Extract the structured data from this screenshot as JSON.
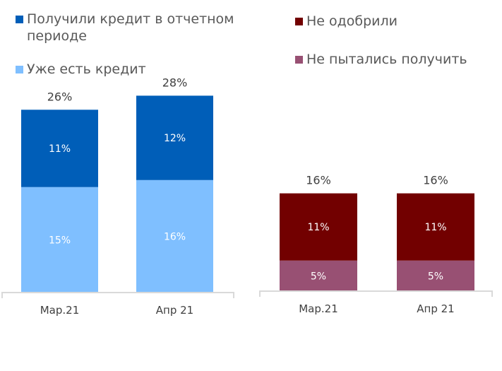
{
  "chart_data": [
    {
      "type": "bar",
      "stacked": true,
      "categories": [
        "Мар.21",
        "Апр 21"
      ],
      "series": [
        {
          "name": "Уже есть кредит",
          "values": [
            15,
            16
          ],
          "color": "#7fbfff"
        },
        {
          "name": "Получили кредит в отчетном периоде",
          "values": [
            11,
            12
          ],
          "color": "#005eb8"
        }
      ],
      "totals": [
        26,
        28
      ],
      "value_suffix": "%",
      "legend_position": "top",
      "grid": false
    },
    {
      "type": "bar",
      "stacked": true,
      "categories": [
        "Мар.21",
        "Апр 21"
      ],
      "series": [
        {
          "name": "Не пытались получить",
          "values": [
            5,
            5
          ],
          "color": "#985073"
        },
        {
          "name": "Не одобрили",
          "values": [
            11,
            11
          ],
          "color": "#720000"
        }
      ],
      "totals": [
        16,
        16
      ],
      "value_suffix": "%",
      "legend_position": "top",
      "grid": false
    }
  ]
}
